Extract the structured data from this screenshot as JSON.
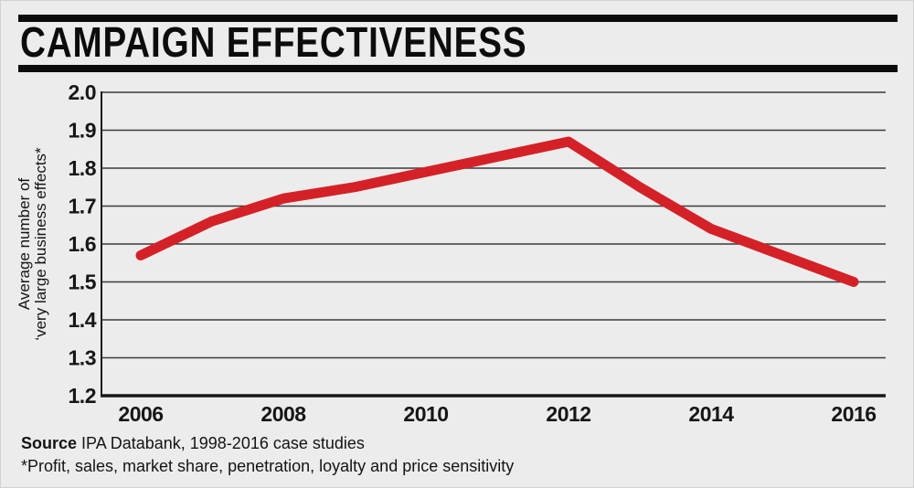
{
  "header": {
    "title": "CAMPAIGN EFFECTIVENESS"
  },
  "footer": {
    "source_label": "Source",
    "source_text": "IPA Databank, 1998-2016 case studies",
    "footnote": "*Profit, sales, market share, penetration, loyalty and price sensitivity"
  },
  "colors": {
    "background": "#ececec",
    "title_bars": "#0c0c0c",
    "grid": "#3a3a3a",
    "axis": "#161616",
    "text": "#141414",
    "line_red": "#d42127"
  },
  "chart_data": {
    "type": "line",
    "title": "CAMPAIGN EFFECTIVENESS",
    "x": [
      2006,
      2007,
      2008,
      2009,
      2010,
      2011,
      2012,
      2013,
      2014,
      2015,
      2016
    ],
    "series": [
      {
        "name": "Average number of ‘very large business effects*",
        "color": "#d42127",
        "values": [
          1.57,
          1.66,
          1.72,
          1.75,
          1.79,
          1.83,
          1.87,
          1.75,
          1.64,
          1.57,
          1.5
        ]
      }
    ],
    "xtick_labels": [
      "2006",
      "2008",
      "2010",
      "2012",
      "2014",
      "2016"
    ],
    "ytick_labels": [
      "2.0",
      "1.9",
      "1.8",
      "1.7",
      "1.6",
      "1.5",
      "1.4",
      "1.3",
      "1.2"
    ],
    "ylim": [
      1.2,
      2.0
    ],
    "xlabel": "",
    "ylabel_lines": [
      "Average number of",
      "‘very large business effects*"
    ],
    "grid": "horizontal",
    "legend": "none"
  }
}
